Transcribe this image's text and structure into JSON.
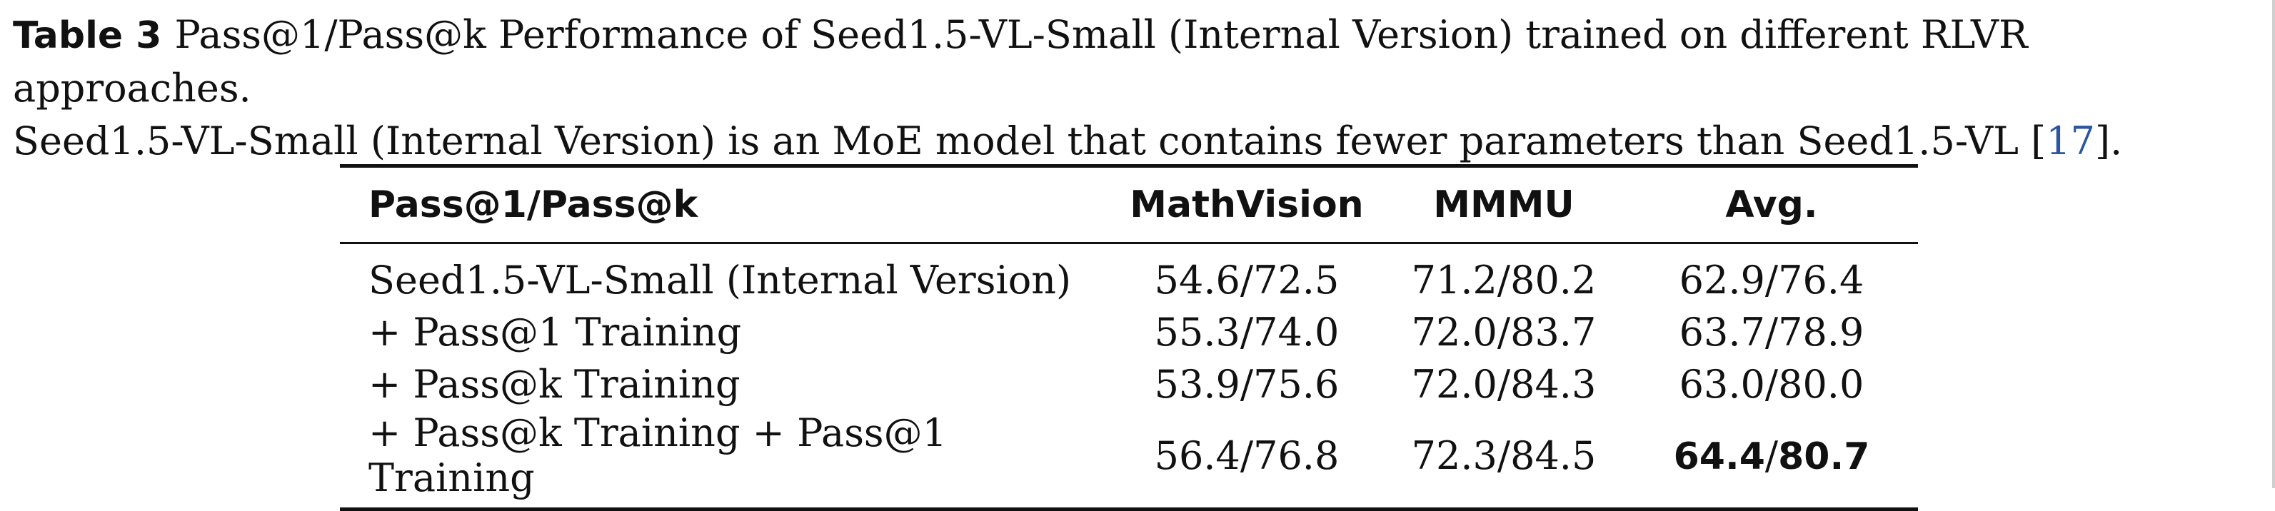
{
  "caption": {
    "label": "Table 3",
    "line1": "Pass@1/Pass@k Performance of Seed1.5-VL-Small (Internal Version) trained on different RLVR approaches.",
    "line2_pre": "Seed1.5-VL-Small (Internal Version) is an MoE model that contains fewer parameters than Seed1.5-VL [",
    "ref": "17",
    "line2_post": "]."
  },
  "table": {
    "headers": [
      "Pass@1/Pass@k",
      "MathVision",
      "MMMU",
      "Avg."
    ],
    "rows": [
      {
        "method": "Seed1.5-VL-Small (Internal Version)",
        "mathvision": "54.6/72.5",
        "mmmu": "71.2/80.2",
        "avg": "62.9/76.4"
      },
      {
        "method": "+ Pass@1 Training",
        "mathvision": "55.3/74.0",
        "mmmu": "72.0/83.7",
        "avg": "63.7/78.9"
      },
      {
        "method": "+ Pass@k Training",
        "mathvision": "53.9/75.6",
        "mmmu": "72.0/84.3",
        "avg": "63.0/80.0"
      },
      {
        "method": "+ Pass@k Training + Pass@1 Training",
        "mathvision": "56.4/76.8",
        "mmmu": "72.3/84.5",
        "avg_bold_pass1": "64.4",
        "avg_sep": "/",
        "avg_bold_passk": "80.7"
      }
    ]
  }
}
